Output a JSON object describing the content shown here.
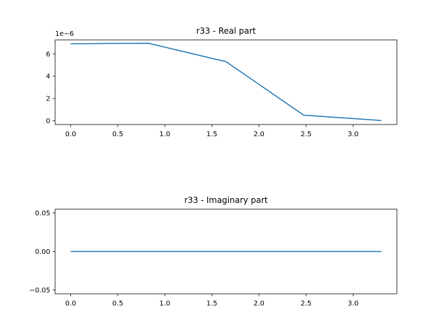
{
  "chart_data": [
    {
      "type": "line",
      "title": "r33 - Real part",
      "xlabel": "",
      "ylabel": "",
      "offset_text": "1e−6",
      "x": [
        0.0,
        0.825,
        1.65,
        2.475,
        3.3
      ],
      "series": [
        {
          "values": [
            6.9e-06,
            6.95e-06,
            5.3e-06,
            5e-07,
            2e-08
          ],
          "color": "#1f77b4"
        }
      ],
      "xlim": [
        -0.165,
        3.465
      ],
      "ylim": [
        -3.4e-07,
        7.25e-06
      ],
      "xticks": [
        0.0,
        0.5,
        1.0,
        1.5,
        2.0,
        2.5,
        3.0
      ],
      "xtick_labels": [
        "0.0",
        "0.5",
        "1.0",
        "1.5",
        "2.0",
        "2.5",
        "3.0"
      ],
      "yticks": [
        0,
        2e-06,
        4e-06,
        6e-06
      ],
      "ytick_labels": [
        "0",
        "2",
        "4",
        "6"
      ],
      "grid": false
    },
    {
      "type": "line",
      "title": "r33 - Imaginary part",
      "xlabel": "",
      "ylabel": "",
      "x": [
        0.0,
        0.825,
        1.65,
        2.475,
        3.3
      ],
      "series": [
        {
          "values": [
            0.0,
            0.0,
            0.0,
            0.0,
            0.0
          ],
          "color": "#1f77b4"
        }
      ],
      "xlim": [
        -0.165,
        3.465
      ],
      "ylim": [
        -0.055,
        0.055
      ],
      "xticks": [
        0.0,
        0.5,
        1.0,
        1.5,
        2.0,
        2.5,
        3.0
      ],
      "xtick_labels": [
        "0.0",
        "0.5",
        "1.0",
        "1.5",
        "2.0",
        "2.5",
        "3.0"
      ],
      "yticks": [
        -0.05,
        0.0,
        0.05
      ],
      "ytick_labels": [
        "−0.05",
        "0.00",
        "0.05"
      ],
      "grid": false
    }
  ]
}
